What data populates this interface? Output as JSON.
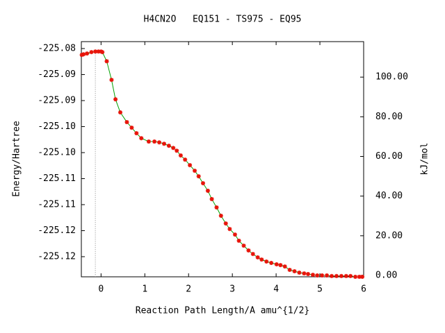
{
  "chart_data": {
    "type": "line",
    "title": "H4CN2O   EQ151 - TS975 - EQ95",
    "x_label": "Reaction Path Length/A amu^{1/2}",
    "y_label": "Energy/Hartree",
    "y2_label": "kJ/mol",
    "x": [
      -0.44,
      -0.4,
      -0.32,
      -0.22,
      -0.13,
      -0.06,
      0,
      0.03,
      0.13,
      0.24,
      0.33,
      0.44,
      0.59,
      0.7,
      0.81,
      0.92,
      1.09,
      1.22,
      1.33,
      1.44,
      1.55,
      1.65,
      1.73,
      1.82,
      1.92,
      2.03,
      2.14,
      2.23,
      2.33,
      2.44,
      2.53,
      2.64,
      2.74,
      2.85,
      2.94,
      3.06,
      3.15,
      3.26,
      3.37,
      3.47,
      3.58,
      3.67,
      3.78,
      3.89,
      4.01,
      4.1,
      4.2,
      4.31,
      4.42,
      4.53,
      4.64,
      4.73,
      4.84,
      4.94,
      5.05,
      5.16,
      5.27,
      5.38,
      5.49,
      5.6,
      5.7,
      5.81,
      5.9,
      5.97
    ],
    "series": [
      {
        "color": "#00a000",
        "marker_color": "#e8140a",
        "axis": "y2",
        "values": [
          111.2,
          111.5,
          111.9,
          112.6,
          112.9,
          112.9,
          112.9,
          112.6,
          108.0,
          98.6,
          88.8,
          82.2,
          77.3,
          74.5,
          71.7,
          69.2,
          67.5,
          67.5,
          67.1,
          66.4,
          65.4,
          64.3,
          62.9,
          60.5,
          58.4,
          55.6,
          52.8,
          50.0,
          46.5,
          42.7,
          38.5,
          34.3,
          30.1,
          26.2,
          23.4,
          20.6,
          17.5,
          15.0,
          12.6,
          10.8,
          9.1,
          8.0,
          7.0,
          6.3,
          5.6,
          5.2,
          4.5,
          2.8,
          2.1,
          1.4,
          1.0,
          0.7,
          0.3,
          0,
          0,
          0,
          -0.3,
          -0.3,
          -0.3,
          -0.3,
          -0.3,
          -0.7,
          -0.7,
          -0.7
        ]
      }
    ],
    "xlim": [
      -0.45,
      6
    ],
    "xticks": [
      0,
      1,
      2,
      3,
      4,
      5,
      6
    ],
    "ylim": [
      -225.12387,
      -225.07867
    ],
    "yticks": [
      {
        "value": -225.08,
        "label": "-225.08"
      },
      {
        "value": -225.085,
        "label": "-225.09"
      },
      {
        "value": -225.09,
        "label": "-225.09"
      },
      {
        "value": -225.095,
        "label": "-225.10"
      },
      {
        "value": -225.1,
        "label": "-225.10"
      },
      {
        "value": -225.105,
        "label": "-225.11"
      },
      {
        "value": -225.11,
        "label": "-225.11"
      },
      {
        "value": -225.115,
        "label": "-225.12"
      },
      {
        "value": -225.12,
        "label": "-225.12"
      }
    ],
    "y2lim": [
      -0.7,
      117.9
    ],
    "y2ticks": [
      {
        "value": 0,
        "label": "0.00"
      },
      {
        "value": 20,
        "label": "20.00"
      },
      {
        "value": 40,
        "label": "40.00"
      },
      {
        "value": 60,
        "label": "60.00"
      },
      {
        "value": 80,
        "label": "80.00"
      },
      {
        "value": 100,
        "label": "100.00"
      }
    ]
  }
}
